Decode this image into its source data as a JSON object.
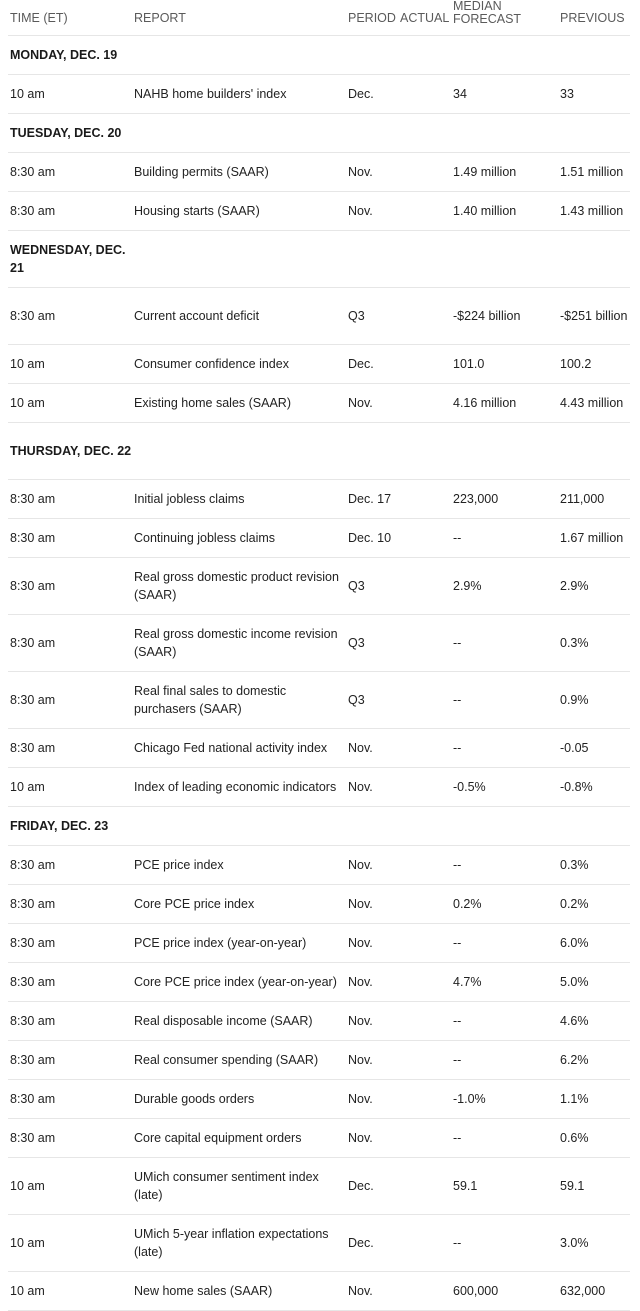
{
  "columns": {
    "time": "TIME (ET)",
    "report": "REPORT",
    "period": "PERIOD",
    "actual": "ACTUAL",
    "forecast_top": "MEDIAN",
    "forecast": "FORECAST",
    "previous": "PREVIOUS"
  },
  "days": [
    {
      "label": "MONDAY, DEC. 19",
      "rows": [
        {
          "time": "10 am",
          "report": "NAHB home builders' index",
          "period": "Dec.",
          "actual": "",
          "forecast": "34",
          "previous": "33"
        }
      ]
    },
    {
      "label": "TUESDAY, DEC. 20",
      "rows": [
        {
          "time": "8:30 am",
          "report": "Building permits (SAAR)",
          "period": "Nov.",
          "actual": "",
          "forecast": "1.49 million",
          "previous": "1.51 million"
        },
        {
          "time": "8:30 am",
          "report": "Housing starts (SAAR)",
          "period": "Nov.",
          "actual": "",
          "forecast": "1.40 million",
          "previous": "1.43 million"
        }
      ]
    },
    {
      "label": "WEDNESDAY, DEC. 21",
      "rows": [
        {
          "time": "8:30 am",
          "report": "Current account deficit",
          "period": "Q3",
          "actual": "",
          "forecast": "-$224 billion",
          "previous": "-$251 billion"
        },
        {
          "time": "10 am",
          "report": "Consumer confidence index",
          "period": "Dec.",
          "actual": "",
          "forecast": "101.0",
          "previous": "100.2"
        },
        {
          "time": "10 am",
          "report": "Existing home sales (SAAR)",
          "period": "Nov.",
          "actual": "",
          "forecast": "4.16 million",
          "previous": "4.43 million"
        }
      ]
    },
    {
      "label": "THURSDAY, DEC. 22",
      "rows": [
        {
          "time": "8:30 am",
          "report": "Initial jobless claims",
          "period": "Dec. 17",
          "actual": "",
          "forecast": "223,000",
          "previous": "211,000"
        },
        {
          "time": "8:30 am",
          "report": "Continuing jobless claims",
          "period": "Dec. 10",
          "actual": "",
          "forecast": "--",
          "previous": "1.67 million"
        },
        {
          "time": "8:30 am",
          "report": "Real gross domestic product revision (SAAR)",
          "period": "Q3",
          "actual": "",
          "forecast": "2.9%",
          "previous": "2.9%"
        },
        {
          "time": "8:30 am",
          "report": "Real gross domestic income revision (SAAR)",
          "period": "Q3",
          "actual": "",
          "forecast": "--",
          "previous": "0.3%"
        },
        {
          "time": "8:30 am",
          "report": "Real final sales to domestic purchasers (SAAR)",
          "period": "Q3",
          "actual": "",
          "forecast": "--",
          "previous": "0.9%"
        },
        {
          "time": "8:30 am",
          "report": "Chicago Fed national activity index",
          "period": "Nov.",
          "actual": "",
          "forecast": "--",
          "previous": "-0.05"
        },
        {
          "time": "10 am",
          "report": "Index of leading economic indicators",
          "period": "Nov.",
          "actual": "",
          "forecast": "-0.5%",
          "previous": "-0.8%"
        }
      ]
    },
    {
      "label": "FRIDAY, DEC. 23",
      "rows": [
        {
          "time": "8:30 am",
          "report": "PCE price index",
          "period": "Nov.",
          "actual": "",
          "forecast": "--",
          "previous": "0.3%"
        },
        {
          "time": "8:30 am",
          "report": "Core PCE price index",
          "period": "Nov.",
          "actual": "",
          "forecast": "0.2%",
          "previous": "0.2%"
        },
        {
          "time": "8:30 am",
          "report": "PCE price index (year-on-year)",
          "period": "Nov.",
          "actual": "",
          "forecast": "--",
          "previous": "6.0%"
        },
        {
          "time": "8:30 am",
          "report": "Core PCE price index (year-on-year)",
          "period": "Nov.",
          "actual": "",
          "forecast": "4.7%",
          "previous": "5.0%"
        },
        {
          "time": "8:30 am",
          "report": "Real disposable income (SAAR)",
          "period": "Nov.",
          "actual": "",
          "forecast": "--",
          "previous": "4.6%"
        },
        {
          "time": "8:30 am",
          "report": "Real consumer spending (SAAR)",
          "period": "Nov.",
          "actual": "",
          "forecast": "--",
          "previous": "6.2%"
        },
        {
          "time": "8:30 am",
          "report": "Durable goods orders",
          "period": "Nov.",
          "actual": "",
          "forecast": "-1.0%",
          "previous": "1.1%"
        },
        {
          "time": "8:30 am",
          "report": "Core capital equipment orders",
          "period": "Nov.",
          "actual": "",
          "forecast": "--",
          "previous": "0.6%"
        },
        {
          "time": "10 am",
          "report": "UMich consumer sentiment index (late)",
          "period": "Dec.",
          "actual": "",
          "forecast": "59.1",
          "previous": "59.1"
        },
        {
          "time": "10 am",
          "report": "UMich 5-year inflation expectations (late)",
          "period": "Dec.",
          "actual": "",
          "forecast": "--",
          "previous": "3.0%"
        },
        {
          "time": "10 am",
          "report": "New home sales (SAAR)",
          "period": "Nov.",
          "actual": "",
          "forecast": "600,000",
          "previous": "632,000"
        }
      ]
    }
  ]
}
